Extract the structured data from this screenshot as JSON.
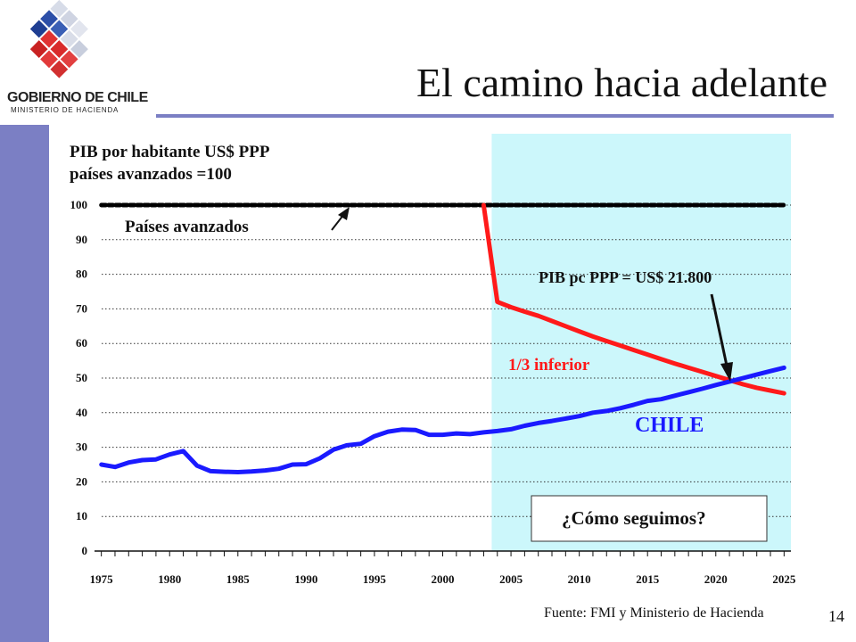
{
  "slide": {
    "title": "El camino hacia adelante",
    "logo_line1": "GOBIERNO DE CHILE",
    "logo_line2": "MINISTERIO DE HACIENDA",
    "subtitle_line1": "PIB por habitante US$ PPP",
    "subtitle_line2": "países avanzados =100",
    "source": "Fuente: FMI y Ministerio de Hacienda",
    "page_number": "14"
  },
  "colors": {
    "sidebar": "#7b7fc4",
    "projection_background": "#ccf7fb",
    "advanced": "#000000",
    "lower_third": "#ff1a1a",
    "chile": "#1a1aff"
  },
  "chart_data": {
    "type": "line",
    "x_tick_labels": [
      "1975",
      "1980",
      "1985",
      "1990",
      "1995",
      "2000",
      "2005",
      "2010",
      "2015",
      "2020",
      "2025"
    ],
    "y_tick_labels": [
      "0",
      "10",
      "20",
      "30",
      "40",
      "50",
      "60",
      "70",
      "80",
      "90",
      "100"
    ],
    "xlim": [
      1974.5,
      2025.5
    ],
    "ylim": [
      0,
      100
    ],
    "grid": "horizontal dotted",
    "projection_shading_from": 2003,
    "series": [
      {
        "name": "Países avanzados",
        "style": "dashed-thick",
        "x": [
          1975,
          2025
        ],
        "y": [
          100,
          100
        ]
      },
      {
        "name": "1/3 inferior",
        "x": [
          2003,
          2004,
          2005,
          2006,
          2007,
          2008,
          2009,
          2010,
          2011,
          2012,
          2013,
          2014,
          2015,
          2016,
          2017,
          2018,
          2019,
          2020,
          2021,
          2022,
          2023,
          2024,
          2025
        ],
        "y": [
          100,
          72,
          70.5,
          69.2,
          68,
          66.5,
          65,
          63.5,
          62,
          60.7,
          59.4,
          58.1,
          56.8,
          55.5,
          54.2,
          53,
          51.8,
          50.6,
          49.4,
          48.2,
          47.2,
          46.4,
          45.6
        ]
      },
      {
        "name": "CHILE",
        "x": [
          1975,
          1976,
          1977,
          1978,
          1979,
          1980,
          1981,
          1982,
          1983,
          1984,
          1985,
          1986,
          1987,
          1988,
          1989,
          1990,
          1991,
          1992,
          1993,
          1994,
          1995,
          1996,
          1997,
          1998,
          1999,
          2000,
          2001,
          2002,
          2003,
          2004,
          2005,
          2006,
          2007,
          2008,
          2009,
          2010,
          2011,
          2012,
          2013,
          2014,
          2015,
          2016,
          2017,
          2018,
          2019,
          2020,
          2021,
          2022,
          2023,
          2024,
          2025
        ],
        "y": [
          25,
          24.3,
          25.6,
          26.3,
          26.5,
          27.9,
          28.9,
          24.7,
          23.1,
          22.9,
          22.8,
          23,
          23.3,
          23.8,
          25,
          25.1,
          26.8,
          29.3,
          30.6,
          31,
          33.2,
          34.5,
          35.1,
          35,
          33.6,
          33.6,
          34,
          33.8,
          34.3,
          34.7,
          35.2,
          36.2,
          37,
          37.6,
          38.3,
          39,
          40,
          40.5,
          41.3,
          42.3,
          43.4,
          43.9,
          44.9,
          45.9,
          46.9,
          48,
          49,
          50,
          51,
          52,
          53
        ]
      }
    ],
    "annotations": {
      "advanced_label": "Países avanzados",
      "lower_third_label": "1/3 inferior",
      "chile_label": "CHILE",
      "pib_note": "PIB pc PPP = US$ 21.800",
      "question_box": "¿Cómo seguimos?"
    }
  }
}
